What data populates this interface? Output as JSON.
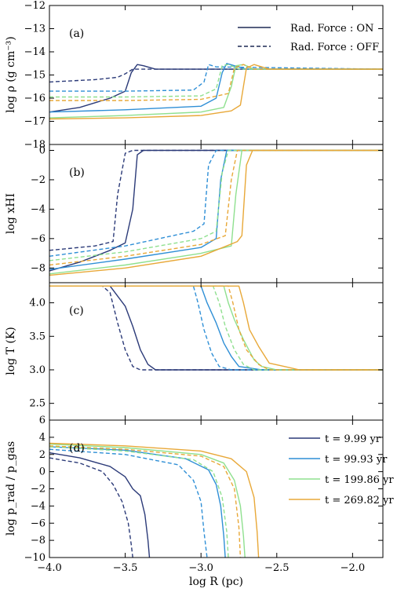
{
  "chart_data": {
    "type": "line",
    "shared_x": {
      "label": "log R (pc)",
      "xlim": [
        -4.0,
        -1.8
      ],
      "ticks": [
        -4.0,
        -3.5,
        -3.0,
        -2.5,
        -2.0
      ],
      "tick_labels": [
        "−4.0",
        "−3.5",
        "−3.0",
        "−2.5",
        "−2.0"
      ]
    },
    "colors": {
      "t=9.99 yr": "#2b3a78",
      "t=99.93 yr": "#2f8fd6",
      "t=199.86 yr": "#8fe08f",
      "t=269.82 yr": "#e8a838"
    },
    "style_legend": [
      {
        "label": "Rad. Force : ON",
        "style": "solid"
      },
      {
        "label": "Rad. Force : OFF",
        "style": "dashed"
      }
    ],
    "time_legend": [
      {
        "label": "t = 9.99 yr",
        "color_key": "t=9.99 yr"
      },
      {
        "label": "t = 99.93 yr",
        "color_key": "t=99.93 yr"
      },
      {
        "label": "t = 199.86 yr",
        "color_key": "t=199.86 yr"
      },
      {
        "label": "t = 269.82 yr",
        "color_key": "t=269.82 yr"
      }
    ],
    "panels": [
      {
        "id": "a",
        "label": "(a)",
        "ylabel": "log ρ (g cm⁻³)",
        "ylim": [
          -18,
          -12
        ],
        "yticks": [
          -18,
          -17,
          -16,
          -15,
          -14,
          -13,
          -12
        ],
        "ytick_labels": [
          "−18",
          "−17",
          "−16",
          "−15",
          "−14",
          "−13",
          "−12"
        ],
        "series": [
          {
            "key": "t=9.99 yr",
            "style": "solid",
            "x": [
              -4.0,
              -3.8,
              -3.6,
              -3.5,
              -3.46,
              -3.42,
              -3.38,
              -3.3,
              -3.2,
              -1.8
            ],
            "y": [
              -16.6,
              -16.4,
              -16.0,
              -15.7,
              -14.9,
              -14.55,
              -14.6,
              -14.75,
              -14.75,
              -14.75
            ]
          },
          {
            "key": "t=9.99 yr",
            "style": "dashed",
            "x": [
              -4.0,
              -3.7,
              -3.55,
              -3.5,
              -3.45,
              -3.4,
              -3.3,
              -1.8
            ],
            "y": [
              -15.3,
              -15.2,
              -15.1,
              -14.95,
              -14.75,
              -14.75,
              -14.75,
              -14.75
            ]
          },
          {
            "key": "t=99.93 yr",
            "style": "solid",
            "x": [
              -4.0,
              -3.5,
              -3.0,
              -2.9,
              -2.86,
              -2.83,
              -2.78,
              -2.7,
              -1.8
            ],
            "y": [
              -16.6,
              -16.5,
              -16.35,
              -16.0,
              -14.9,
              -14.5,
              -14.6,
              -14.75,
              -14.75
            ]
          },
          {
            "key": "t=99.93 yr",
            "style": "dashed",
            "x": [
              -4.0,
              -3.5,
              -3.05,
              -2.98,
              -2.95,
              -2.9,
              -1.8
            ],
            "y": [
              -15.7,
              -15.7,
              -15.65,
              -15.3,
              -14.55,
              -14.65,
              -14.75
            ]
          },
          {
            "key": "t=199.86 yr",
            "style": "solid",
            "x": [
              -4.0,
              -3.5,
              -3.0,
              -2.85,
              -2.8,
              -2.77,
              -2.72,
              -2.65,
              -1.8
            ],
            "y": [
              -16.85,
              -16.75,
              -16.6,
              -16.4,
              -15.5,
              -14.6,
              -14.55,
              -14.75,
              -14.75
            ]
          },
          {
            "key": "t=199.86 yr",
            "style": "dashed",
            "x": [
              -4.0,
              -3.5,
              -3.0,
              -2.9,
              -2.86,
              -2.82,
              -2.75,
              -1.8
            ],
            "y": [
              -15.95,
              -15.95,
              -15.9,
              -15.6,
              -14.6,
              -14.55,
              -14.75,
              -14.75
            ]
          },
          {
            "key": "t=269.82 yr",
            "style": "solid",
            "x": [
              -4.0,
              -3.5,
              -3.0,
              -2.8,
              -2.74,
              -2.7,
              -2.65,
              -2.55,
              -1.8
            ],
            "y": [
              -16.9,
              -16.85,
              -16.75,
              -16.55,
              -16.3,
              -14.7,
              -14.55,
              -14.75,
              -14.75
            ]
          },
          {
            "key": "t=269.82 yr",
            "style": "dashed",
            "x": [
              -4.0,
              -3.5,
              -3.0,
              -2.82,
              -2.78,
              -2.72,
              -2.65,
              -1.8
            ],
            "y": [
              -16.1,
              -16.1,
              -16.05,
              -15.8,
              -14.7,
              -14.55,
              -14.75,
              -14.75
            ]
          }
        ]
      },
      {
        "id": "b",
        "label": "(b)",
        "ylabel": "log xHI",
        "ylim": [
          -9,
          0.4
        ],
        "yticks": [
          -8,
          -6,
          -4,
          -2,
          0
        ],
        "ytick_labels": [
          "−8",
          "−6",
          "−4",
          "−2",
          "0"
        ],
        "series": [
          {
            "key": "t=9.99 yr",
            "style": "solid",
            "x": [
              -4.0,
              -3.8,
              -3.6,
              -3.5,
              -3.45,
              -3.42,
              -3.38,
              -3.3,
              -1.8
            ],
            "y": [
              -8.2,
              -7.6,
              -6.8,
              -6.3,
              -4.0,
              -0.3,
              0.0,
              0.0,
              0.0
            ]
          },
          {
            "key": "t=9.99 yr",
            "style": "dashed",
            "x": [
              -4.0,
              -3.7,
              -3.58,
              -3.55,
              -3.5,
              -3.45,
              -1.8
            ],
            "y": [
              -6.8,
              -6.5,
              -6.2,
              -3.0,
              -0.2,
              0.0,
              0.0
            ]
          },
          {
            "key": "t=99.93 yr",
            "style": "solid",
            "x": [
              -4.0,
              -3.5,
              -3.0,
              -2.9,
              -2.87,
              -2.83,
              -2.8,
              -1.8
            ],
            "y": [
              -8.1,
              -7.4,
              -6.6,
              -6.0,
              -2.0,
              0.0,
              0.0,
              0.0
            ]
          },
          {
            "key": "t=99.93 yr",
            "style": "dashed",
            "x": [
              -4.0,
              -3.5,
              -3.05,
              -2.98,
              -2.95,
              -2.9,
              -1.8
            ],
            "y": [
              -7.2,
              -6.5,
              -5.5,
              -5.0,
              -1.0,
              0.0,
              0.0
            ]
          },
          {
            "key": "t=199.86 yr",
            "style": "solid",
            "x": [
              -4.0,
              -3.5,
              -3.0,
              -2.8,
              -2.77,
              -2.73,
              -2.7,
              -1.8
            ],
            "y": [
              -8.4,
              -7.8,
              -7.0,
              -6.5,
              -3.0,
              0.0,
              0.0,
              0.0
            ]
          },
          {
            "key": "t=199.86 yr",
            "style": "dashed",
            "x": [
              -4.0,
              -3.5,
              -3.0,
              -2.9,
              -2.86,
              -2.82,
              -1.8
            ],
            "y": [
              -7.5,
              -6.9,
              -6.0,
              -5.5,
              -1.5,
              0.0,
              0.0
            ]
          },
          {
            "key": "t=269.82 yr",
            "style": "solid",
            "x": [
              -4.0,
              -3.5,
              -3.0,
              -2.76,
              -2.73,
              -2.7,
              -2.66,
              -1.8
            ],
            "y": [
              -8.5,
              -8.0,
              -7.2,
              -6.2,
              -5.8,
              -1.0,
              0.0,
              0.0
            ]
          },
          {
            "key": "t=269.82 yr",
            "style": "dashed",
            "x": [
              -4.0,
              -3.5,
              -3.0,
              -2.84,
              -2.8,
              -2.76,
              -1.8
            ],
            "y": [
              -7.8,
              -7.2,
              -6.4,
              -5.8,
              -2.0,
              0.0,
              0.0
            ]
          }
        ]
      },
      {
        "id": "c",
        "label": "(c)",
        "ylabel": "log T (K)",
        "ylim": [
          2.25,
          4.3
        ],
        "yticks": [
          2.5,
          3.0,
          3.5,
          4.0
        ],
        "ytick_labels": [
          "2.5",
          "3.0",
          "3.5",
          "4.0"
        ],
        "series": [
          {
            "key": "t=9.99 yr",
            "style": "solid",
            "x": [
              -4.0,
              -3.6,
              -3.55,
              -3.5,
              -3.45,
              -3.4,
              -3.35,
              -3.3,
              -1.8
            ],
            "y": [
              4.25,
              4.25,
              4.1,
              3.95,
              3.65,
              3.3,
              3.08,
              3.0,
              3.0
            ]
          },
          {
            "key": "t=9.99 yr",
            "style": "dashed",
            "x": [
              -4.0,
              -3.65,
              -3.6,
              -3.55,
              -3.5,
              -3.45,
              -3.4,
              -1.8
            ],
            "y": [
              4.25,
              4.25,
              4.15,
              3.7,
              3.3,
              3.05,
              3.0,
              3.0
            ]
          },
          {
            "key": "t=99.93 yr",
            "style": "solid",
            "x": [
              -4.0,
              -3.0,
              -2.96,
              -2.9,
              -2.85,
              -2.8,
              -2.75,
              -2.6,
              -1.8
            ],
            "y": [
              4.25,
              4.25,
              4.0,
              3.7,
              3.4,
              3.2,
              3.05,
              3.0,
              3.0
            ]
          },
          {
            "key": "t=99.93 yr",
            "style": "dashed",
            "x": [
              -4.0,
              -3.05,
              -3.02,
              -2.98,
              -2.93,
              -2.88,
              -2.8,
              -1.8
            ],
            "y": [
              4.25,
              4.25,
              4.0,
              3.6,
              3.25,
              3.05,
              3.0,
              3.0
            ]
          },
          {
            "key": "t=199.86 yr",
            "style": "solid",
            "x": [
              -4.0,
              -2.85,
              -2.82,
              -2.78,
              -2.72,
              -2.65,
              -2.6,
              -2.5,
              -1.8
            ],
            "y": [
              4.25,
              4.25,
              4.0,
              3.75,
              3.45,
              3.15,
              3.05,
              3.0,
              3.0
            ]
          },
          {
            "key": "t=199.86 yr",
            "style": "dashed",
            "x": [
              -4.0,
              -2.92,
              -2.88,
              -2.84,
              -2.78,
              -2.72,
              -2.65,
              -1.8
            ],
            "y": [
              4.25,
              4.25,
              4.0,
              3.65,
              3.3,
              3.08,
              3.0,
              3.0
            ]
          },
          {
            "key": "t=269.82 yr",
            "style": "solid",
            "x": [
              -4.0,
              -2.75,
              -2.72,
              -2.68,
              -2.62,
              -2.55,
              -2.45,
              -2.35,
              -1.8
            ],
            "y": [
              4.25,
              4.25,
              4.0,
              3.6,
              3.35,
              3.1,
              3.05,
              3.0,
              3.0
            ]
          },
          {
            "key": "t=269.82 yr",
            "style": "dashed",
            "x": [
              -4.0,
              -2.82,
              -2.79,
              -2.75,
              -2.7,
              -2.62,
              -2.55,
              -1.8
            ],
            "y": [
              4.25,
              4.25,
              4.0,
              3.6,
              3.3,
              3.08,
              3.0,
              3.0
            ]
          }
        ]
      },
      {
        "id": "d",
        "label": "(d)",
        "ylabel": "log p_rad / p_gas",
        "ylim": [
          -10,
          6
        ],
        "yticks": [
          -10,
          -8,
          -6,
          -4,
          -2,
          0,
          2,
          4,
          6
        ],
        "ytick_labels": [
          "−10",
          "−8",
          "−6",
          "−4",
          "−2",
          "0",
          "2",
          "4",
          "6"
        ],
        "series": [
          {
            "key": "t=9.99 yr",
            "style": "solid",
            "x": [
              -4.0,
              -3.8,
              -3.6,
              -3.5,
              -3.45,
              -3.4,
              -3.37,
              -3.35,
              -3.34
            ],
            "y": [
              2.2,
              1.6,
              0.6,
              -0.6,
              -2.0,
              -2.8,
              -5.0,
              -8.0,
              -10.0
            ]
          },
          {
            "key": "t=9.99 yr",
            "style": "dashed",
            "x": [
              -4.0,
              -3.8,
              -3.65,
              -3.58,
              -3.52,
              -3.48,
              -3.46,
              -3.45
            ],
            "y": [
              1.6,
              1.0,
              0.0,
              -1.5,
              -3.5,
              -6.0,
              -8.5,
              -10.0
            ]
          },
          {
            "key": "t=99.93 yr",
            "style": "solid",
            "x": [
              -4.0,
              -3.5,
              -3.1,
              -2.95,
              -2.9,
              -2.87,
              -2.85,
              -2.84
            ],
            "y": [
              2.9,
              2.5,
              1.5,
              0.2,
              -1.5,
              -4.0,
              -7.5,
              -10.0
            ]
          },
          {
            "key": "t=99.93 yr",
            "style": "dashed",
            "x": [
              -4.0,
              -3.5,
              -3.15,
              -3.05,
              -3.0,
              -2.98,
              -2.96
            ],
            "y": [
              2.6,
              2.0,
              0.8,
              -1.0,
              -3.5,
              -7.0,
              -10.0
            ]
          },
          {
            "key": "t=199.86 yr",
            "style": "solid",
            "x": [
              -4.0,
              -3.5,
              -3.0,
              -2.85,
              -2.78,
              -2.74,
              -2.72,
              -2.71
            ],
            "y": [
              3.2,
              2.8,
              2.0,
              1.0,
              -1.0,
              -4.0,
              -7.5,
              -10.0
            ]
          },
          {
            "key": "t=199.86 yr",
            "style": "dashed",
            "x": [
              -4.0,
              -3.5,
              -3.05,
              -2.92,
              -2.86,
              -2.83,
              -2.82
            ],
            "y": [
              2.9,
              2.4,
              1.4,
              0.0,
              -3.0,
              -7.0,
              -10.0
            ]
          },
          {
            "key": "t=269.82 yr",
            "style": "solid",
            "x": [
              -4.0,
              -3.5,
              -3.0,
              -2.8,
              -2.7,
              -2.65,
              -2.63,
              -2.62
            ],
            "y": [
              3.3,
              3.0,
              2.4,
              1.5,
              0.0,
              -3.0,
              -7.0,
              -10.0
            ]
          },
          {
            "key": "t=269.82 yr",
            "style": "dashed",
            "x": [
              -4.0,
              -3.5,
              -3.0,
              -2.85,
              -2.78,
              -2.75,
              -2.74
            ],
            "y": [
              3.0,
              2.6,
              1.8,
              0.6,
              -2.0,
              -6.5,
              -10.0
            ]
          }
        ]
      }
    ]
  }
}
